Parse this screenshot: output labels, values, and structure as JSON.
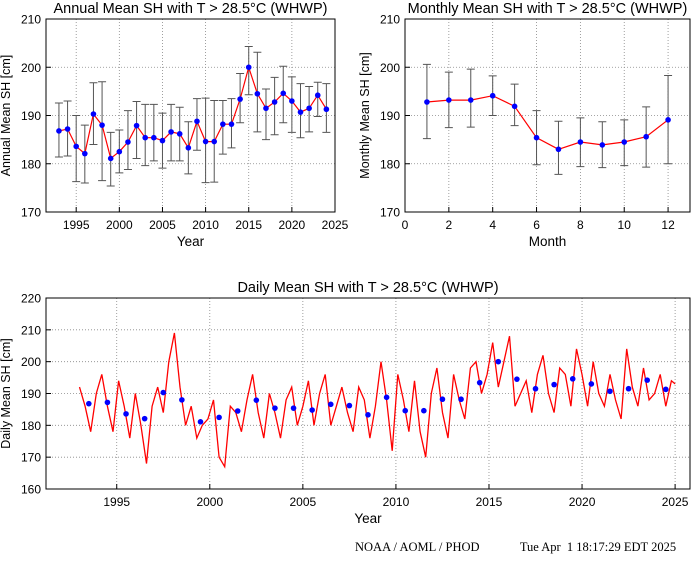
{
  "footer": {
    "org": "NOAA / AOML / PHOD",
    "timestamp": "Tue Apr  1 18:17:29 EDT 2025"
  },
  "colors": {
    "line": "#ff0000",
    "marker": "#0000ff",
    "error_bar": "#555555",
    "grid": "#888888"
  },
  "chart_data": [
    {
      "id": "annual",
      "type": "line",
      "title": "Annual Mean SH with T > 28.5°C (WHWP)",
      "xlabel": "Year",
      "ylabel": "Annual Mean SH [cm]",
      "xlim": [
        1991.5,
        2025
      ],
      "ylim": [
        170,
        210
      ],
      "xticks": [
        1995,
        2000,
        2005,
        2010,
        2015,
        2020,
        2025
      ],
      "yticks": [
        170,
        180,
        190,
        200,
        210
      ],
      "grid": true,
      "series": [
        {
          "x": [
            1993,
            1994,
            1995,
            1996,
            1997,
            1998,
            1999,
            2000,
            2001,
            2002,
            2003,
            2004,
            2005,
            2006,
            2007,
            2008,
            2009,
            2010,
            2011,
            2012,
            2013,
            2014,
            2015,
            2016,
            2017,
            2018,
            2019,
            2020,
            2021,
            2022,
            2023,
            2024
          ],
          "y": [
            186.8,
            187.2,
            183.6,
            182.1,
            190.3,
            188.0,
            181.1,
            182.5,
            184.5,
            187.9,
            185.4,
            185.4,
            184.8,
            186.6,
            186.2,
            183.3,
            188.8,
            184.6,
            184.6,
            188.2,
            188.2,
            193.4,
            200.0,
            194.5,
            191.5,
            192.8,
            194.6,
            193.0,
            190.7,
            191.5,
            194.2,
            191.3
          ],
          "err_low": [
            181.4,
            181.6,
            176.3,
            176.0,
            184.0,
            176.5,
            175.4,
            178.1,
            178.8,
            181.1,
            179.6,
            180.6,
            179.1,
            180.6,
            180.6,
            177.9,
            182.8,
            176.1,
            176.2,
            182.0,
            183.3,
            188.5,
            194.3,
            186.6,
            185.0,
            186.0,
            188.5,
            186.5,
            185.4,
            186.6,
            189.8,
            186.5
          ],
          "err_high": [
            192.6,
            193.0,
            190.0,
            188.0,
            196.8,
            197.0,
            186.5,
            187.0,
            191.0,
            192.9,
            192.3,
            192.3,
            190.5,
            192.3,
            191.7,
            188.7,
            193.5,
            193.6,
            193.1,
            193.1,
            193.5,
            198.7,
            204.3,
            203.1,
            195.5,
            197.9,
            200.2,
            198.0,
            196.6,
            196.0,
            196.9,
            196.6
          ]
        }
      ]
    },
    {
      "id": "monthly",
      "type": "line",
      "title": "Monthly Mean SH with T > 28.5°C (WHWP)",
      "xlabel": "Month",
      "ylabel": "Monthly Mean SH [cm]",
      "xlim": [
        0,
        13
      ],
      "ylim": [
        170,
        210
      ],
      "xticks": [
        0,
        2,
        4,
        6,
        8,
        10,
        12
      ],
      "yticks": [
        170,
        180,
        190,
        200,
        210
      ],
      "grid": true,
      "series": [
        {
          "x": [
            1,
            2,
            3,
            4,
            5,
            6,
            7,
            8,
            9,
            10,
            11,
            12
          ],
          "y": [
            192.8,
            193.2,
            193.2,
            194.1,
            191.9,
            185.4,
            183.0,
            184.5,
            183.9,
            184.5,
            185.6,
            189.1
          ],
          "err_low": [
            185.2,
            187.5,
            187.6,
            190.0,
            187.9,
            179.8,
            177.8,
            179.4,
            179.2,
            179.6,
            179.3,
            180.0
          ],
          "err_high": [
            200.6,
            199.0,
            199.6,
            198.2,
            196.5,
            191.0,
            188.8,
            189.5,
            188.7,
            189.1,
            191.8,
            198.3
          ]
        }
      ]
    },
    {
      "id": "daily",
      "type": "line",
      "title": "Daily Mean SH with T > 28.5°C (WHWP)",
      "xlabel": "Year",
      "ylabel": "Daily Mean SH [cm]",
      "xlim": [
        1991.2,
        2025.8
      ],
      "ylim": [
        160,
        220
      ],
      "xticks": [
        1995,
        2000,
        2005,
        2010,
        2015,
        2020,
        2025
      ],
      "yticks": [
        160,
        170,
        180,
        190,
        200,
        210,
        220
      ],
      "grid": true,
      "series": [
        {
          "name": "daily",
          "x": [
            1993.0,
            1993.3,
            1993.6,
            1993.9,
            1994.2,
            1994.5,
            1994.8,
            1995.1,
            1995.4,
            1995.7,
            1996.0,
            1996.3,
            1996.6,
            1996.9,
            1997.2,
            1997.5,
            1997.8,
            1998.1,
            1998.4,
            1998.7,
            1999.0,
            1999.3,
            1999.6,
            1999.9,
            2000.2,
            2000.5,
            2000.8,
            2001.1,
            2001.4,
            2001.7,
            2002.0,
            2002.3,
            2002.6,
            2002.9,
            2003.2,
            2003.5,
            2003.8,
            2004.1,
            2004.4,
            2004.7,
            2005.0,
            2005.3,
            2005.6,
            2005.9,
            2006.2,
            2006.5,
            2006.8,
            2007.1,
            2007.4,
            2007.7,
            2008.0,
            2008.3,
            2008.6,
            2008.9,
            2009.2,
            2009.5,
            2009.8,
            2010.1,
            2010.4,
            2010.7,
            2011.0,
            2011.3,
            2011.6,
            2011.9,
            2012.2,
            2012.5,
            2012.8,
            2013.1,
            2013.4,
            2013.7,
            2014.0,
            2014.3,
            2014.6,
            2014.9,
            2015.2,
            2015.5,
            2015.8,
            2016.1,
            2016.4,
            2016.7,
            2017.0,
            2017.3,
            2017.6,
            2017.9,
            2018.2,
            2018.5,
            2018.8,
            2019.1,
            2019.4,
            2019.7,
            2020.0,
            2020.3,
            2020.6,
            2020.9,
            2021.2,
            2021.5,
            2021.8,
            2022.1,
            2022.4,
            2022.7,
            2023.0,
            2023.3,
            2023.6,
            2023.9,
            2024.2,
            2024.5,
            2024.8,
            2025.0
          ],
          "y": [
            192,
            186,
            178,
            190,
            196,
            186,
            178,
            194,
            186,
            176,
            190,
            180,
            168,
            186,
            192,
            184,
            200,
            209,
            192,
            180,
            186,
            176,
            180,
            182,
            188,
            170,
            167,
            186,
            184,
            178,
            188,
            196,
            184,
            176,
            190,
            184,
            176,
            188,
            192,
            180,
            186,
            194,
            180,
            190,
            196,
            180,
            186,
            192,
            184,
            178,
            192,
            188,
            176,
            186,
            200,
            188,
            172,
            196,
            188,
            178,
            194,
            178,
            170,
            190,
            198,
            184,
            176,
            196,
            188,
            182,
            198,
            200,
            190,
            196,
            206,
            192,
            200,
            208,
            186,
            190,
            194,
            184,
            196,
            202,
            190,
            184,
            198,
            196,
            186,
            204,
            196,
            186,
            200,
            190,
            186,
            196,
            188,
            182,
            204,
            192,
            186,
            198,
            188,
            190,
            196,
            186,
            194,
            193
          ]
        },
        {
          "name": "annual",
          "x": [
            1993.5,
            1994.5,
            1995.5,
            1996.5,
            1997.5,
            1998.5,
            1999.5,
            2000.5,
            2001.5,
            2002.5,
            2003.5,
            2004.5,
            2005.5,
            2006.5,
            2007.5,
            2008.5,
            2009.5,
            2010.5,
            2011.5,
            2012.5,
            2013.5,
            2014.5,
            2015.5,
            2016.5,
            2017.5,
            2018.5,
            2019.5,
            2020.5,
            2021.5,
            2022.5,
            2023.5,
            2024.5
          ],
          "y": [
            186.8,
            187.2,
            183.6,
            182.1,
            190.3,
            188.0,
            181.1,
            182.5,
            184.5,
            187.9,
            185.4,
            185.4,
            184.8,
            186.6,
            186.2,
            183.3,
            188.8,
            184.6,
            184.6,
            188.2,
            188.2,
            193.4,
            200.0,
            194.5,
            191.5,
            192.8,
            194.6,
            193.0,
            190.7,
            191.5,
            194.2,
            191.3
          ]
        }
      ]
    }
  ]
}
